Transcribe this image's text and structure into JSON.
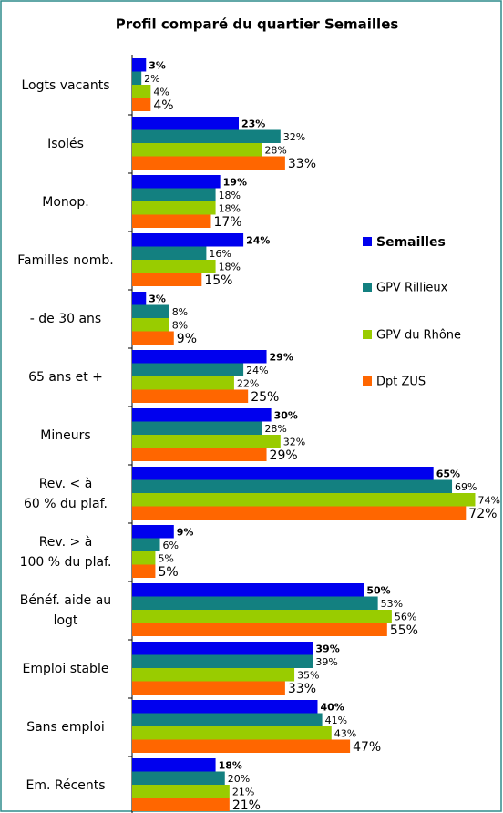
{
  "chart_data": {
    "type": "barh",
    "title": "Profil comparé du quartier Semailles",
    "categories": [
      "Logts vacants",
      "Isolés",
      "Monop.",
      "Familles nomb.",
      "- de 30 ans",
      "65 ans et +",
      "Mineurs",
      "Rev. < à\n60 % du plaf.",
      "Rev. > à\n100 % du plaf.",
      "Bénéf. aide au\nlogt",
      "Emploi stable",
      "Sans emploi",
      "Em. Récents"
    ],
    "xlim": [
      0,
      80
    ],
    "series": [
      {
        "name": "Semailles",
        "color": "#0000ee",
        "values": [
          3,
          23,
          19,
          24,
          3,
          29,
          30,
          65,
          9,
          50,
          39,
          40,
          18
        ],
        "value_labels": [
          "3%",
          "23%",
          "19%",
          "24%",
          "3%",
          "29%",
          "30%",
          "65%",
          "9%",
          "50%",
          "39%",
          "40%",
          "18%"
        ]
      },
      {
        "name": "GPV Rillieux",
        "color": "#138080",
        "values": [
          2,
          32,
          18,
          16,
          8,
          24,
          28,
          69,
          6,
          53,
          39,
          41,
          20
        ],
        "value_labels": [
          "2%",
          "32%",
          "18%",
          "16%",
          "8%",
          "24%",
          "28%",
          "69%",
          "6%",
          "53%",
          "39%",
          "41%",
          "20%"
        ]
      },
      {
        "name": "GPV du Rhône",
        "color": "#99cc00",
        "values": [
          4,
          28,
          18,
          18,
          8,
          22,
          32,
          74,
          5,
          56,
          35,
          43,
          21
        ],
        "value_labels": [
          "4%",
          "28%",
          "18%",
          "18%",
          "8%",
          "22%",
          "32%",
          "74%",
          "5%",
          "56%",
          "35%",
          "43%",
          "21%"
        ]
      },
      {
        "name": "Dpt ZUS",
        "color": "#ff6600",
        "values": [
          4,
          33,
          17,
          15,
          9,
          25,
          29,
          72,
          5,
          55,
          33,
          47,
          21
        ],
        "value_labels": [
          "4%",
          "33%",
          "17%",
          "15%",
          "9%",
          "25%",
          "29%",
          "72%",
          "5%",
          "55%",
          "33%",
          "47%",
          "21%"
        ]
      }
    ],
    "legend": "right"
  }
}
